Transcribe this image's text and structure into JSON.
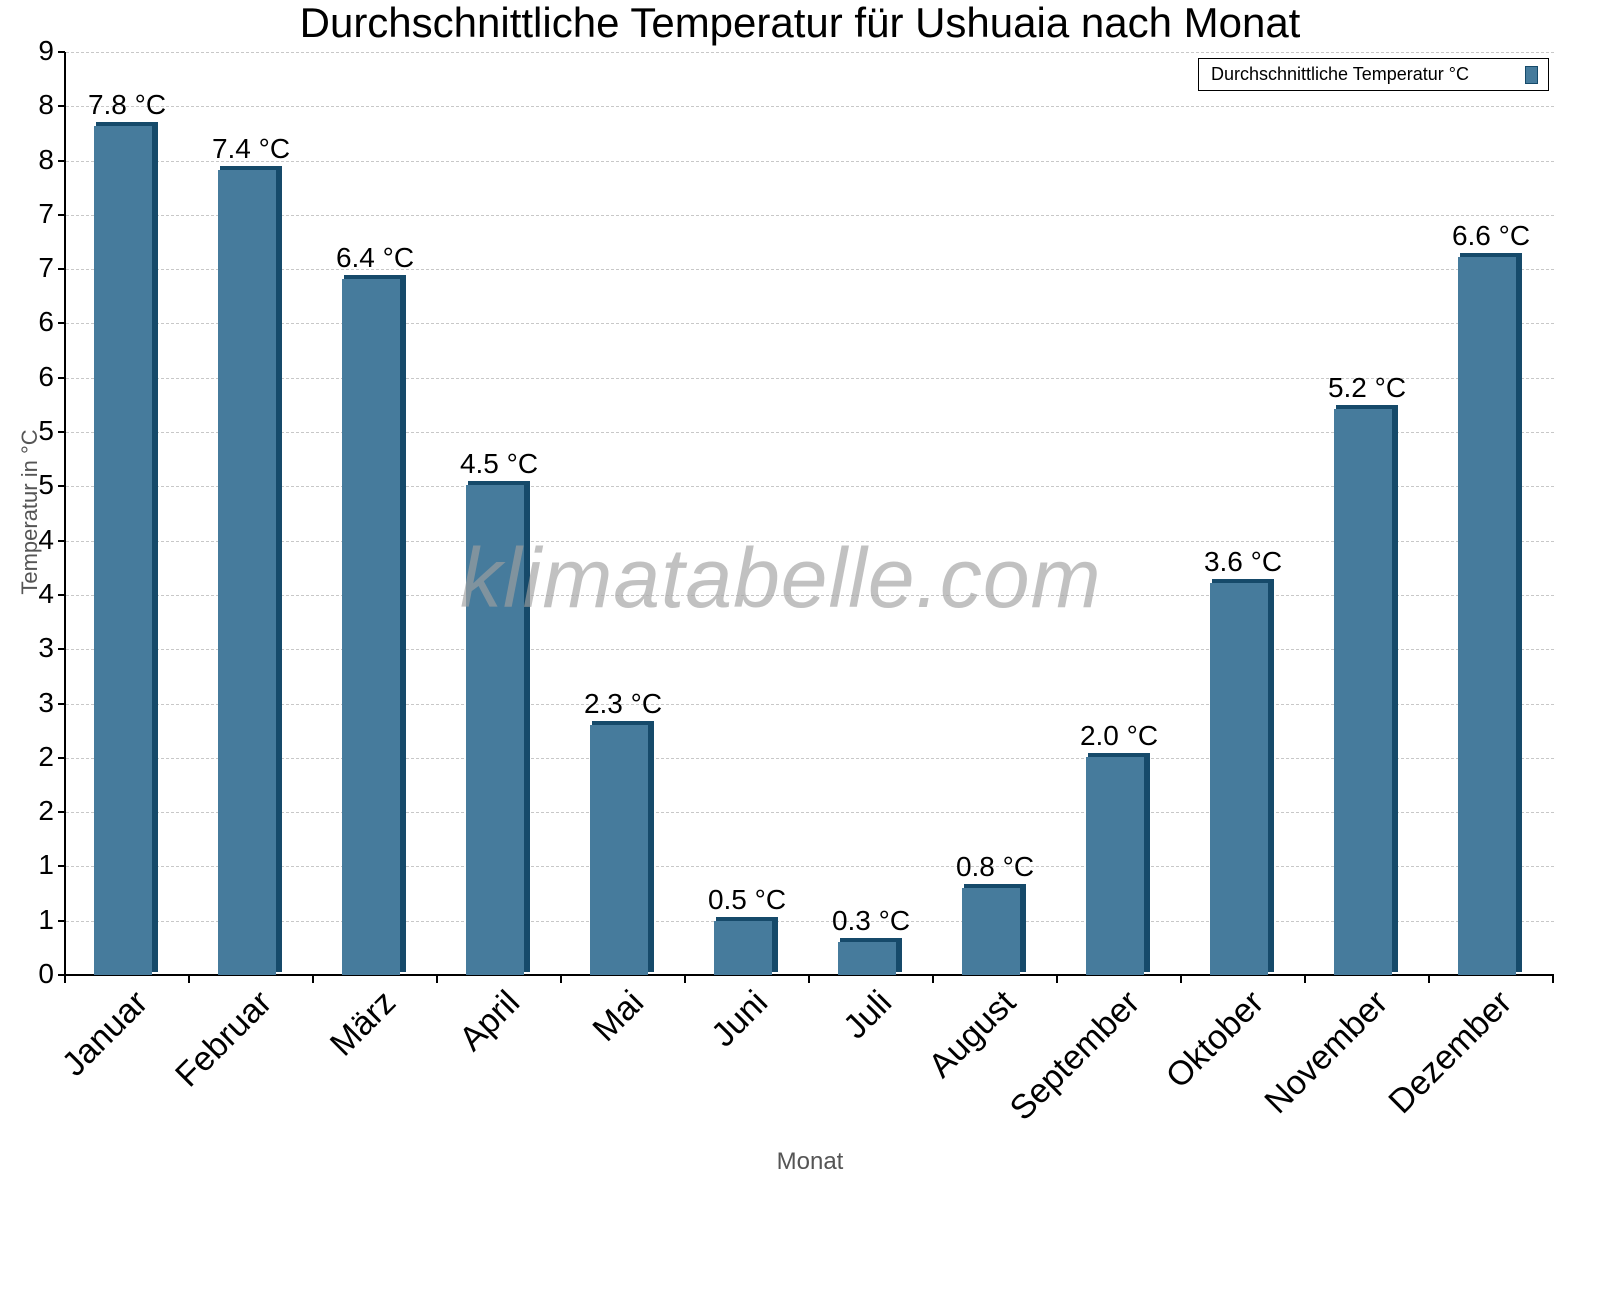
{
  "chart_data": {
    "type": "bar",
    "title": "Durchschnittliche Temperatur für Ushuaia nach Monat",
    "xlabel": "Monat",
    "ylabel": "Temperatur in °C",
    "categories": [
      "Januar",
      "Februar",
      "März",
      "April",
      "Mai",
      "Juni",
      "Juli",
      "August",
      "September",
      "Oktober",
      "November",
      "Dezember"
    ],
    "series": [
      {
        "name": "Durchschnittliche Temperatur °C",
        "color": "#467b9c",
        "values": [
          7.8,
          7.4,
          6.4,
          4.5,
          2.3,
          0.5,
          0.3,
          0.8,
          2.0,
          3.6,
          5.2,
          6.6
        ],
        "data_labels": [
          "7.8 °C",
          "7.4 °C",
          "6.4 °C",
          "4.5 °C",
          "2.3 °C",
          "0.5 °C",
          "0.3 °C",
          "0.8 °C",
          "2.0 °C",
          "3.6 °C",
          "5.2 °C",
          "6.6 °C"
        ]
      }
    ],
    "y_tick_labels": [
      "0",
      "1",
      "1",
      "2",
      "2",
      "3",
      "3",
      "4",
      "4",
      "5",
      "5",
      "6",
      "6",
      "7",
      "7",
      "8",
      "8",
      "9"
    ],
    "ylim": [
      0,
      8.5
    ],
    "grid": true,
    "legend_position": "top-right",
    "watermark": "klimatabelle.com"
  }
}
